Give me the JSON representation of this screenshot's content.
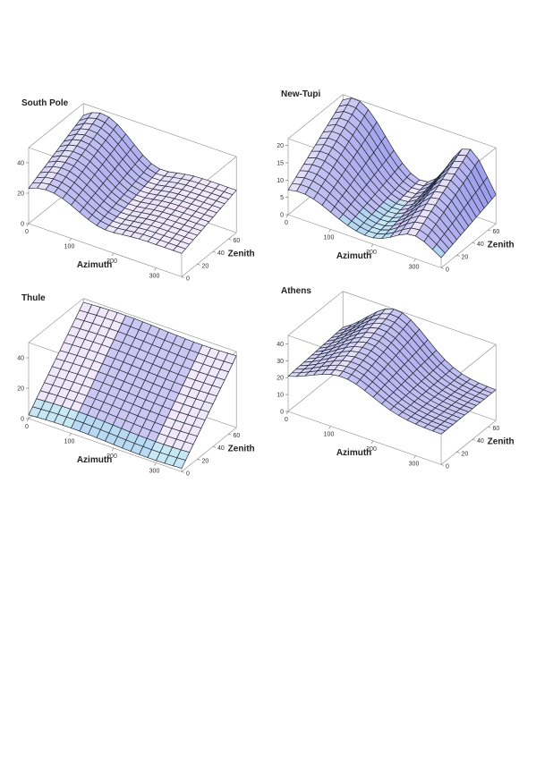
{
  "chart_data": [
    {
      "type": "surface",
      "title": "South Pole",
      "xlabel": "Azimuth",
      "ylabel": "Zenith",
      "xticks": [
        0,
        100,
        200,
        300
      ],
      "yticks": [
        0,
        20,
        40,
        60
      ],
      "zticks": [
        0,
        20,
        40
      ],
      "xlim": [
        0,
        360
      ],
      "ylim": [
        0,
        70
      ],
      "zlim": [
        0,
        50
      ],
      "surface": {
        "kind": "ridge_valley",
        "peak": 38,
        "low": 15,
        "valley_azimuth": 160
      }
    },
    {
      "type": "surface",
      "title": "New-Tupi",
      "xlabel": "Azimuth",
      "ylabel": "Zenith",
      "xticks": [
        0,
        100,
        200,
        300
      ],
      "yticks": [
        0,
        20,
        40,
        60
      ],
      "zticks": [
        0,
        5,
        10,
        15,
        20
      ],
      "xlim": [
        0,
        360
      ],
      "ylim": [
        0,
        70
      ],
      "zlim": [
        0,
        22
      ],
      "surface": {
        "kind": "double_hump",
        "peak": 21,
        "low": 3
      }
    },
    {
      "type": "surface",
      "title": "Thule",
      "xlabel": "Azimuth",
      "ylabel": "Zenith",
      "xticks": [
        0,
        100,
        200,
        300
      ],
      "yticks": [
        0,
        20,
        40,
        60
      ],
      "zticks": [
        0,
        20,
        40
      ],
      "xlim": [
        0,
        360
      ],
      "ylim": [
        0,
        70
      ],
      "zlim": [
        0,
        50
      ],
      "surface": {
        "kind": "zenith_ramp",
        "peak": 45,
        "low": 0
      }
    },
    {
      "type": "surface",
      "title": "Athens",
      "xlabel": "Azimuth",
      "ylabel": "Zenith",
      "xticks": [
        0,
        100,
        200,
        300
      ],
      "yticks": [
        0,
        20,
        40,
        60
      ],
      "zticks": [
        0,
        10,
        20,
        30,
        40
      ],
      "xlim": [
        0,
        360
      ],
      "ylim": [
        0,
        70
      ],
      "zlim": [
        0,
        45
      ],
      "surface": {
        "kind": "single_hump",
        "peak": 44,
        "low": 22
      }
    }
  ],
  "colors": {
    "surface_light": "#f2eafa",
    "surface_blue": "#5a63e0",
    "surface_teal": "#aee6f2",
    "mesh": "#222a36",
    "box": "#8a8a8a"
  }
}
